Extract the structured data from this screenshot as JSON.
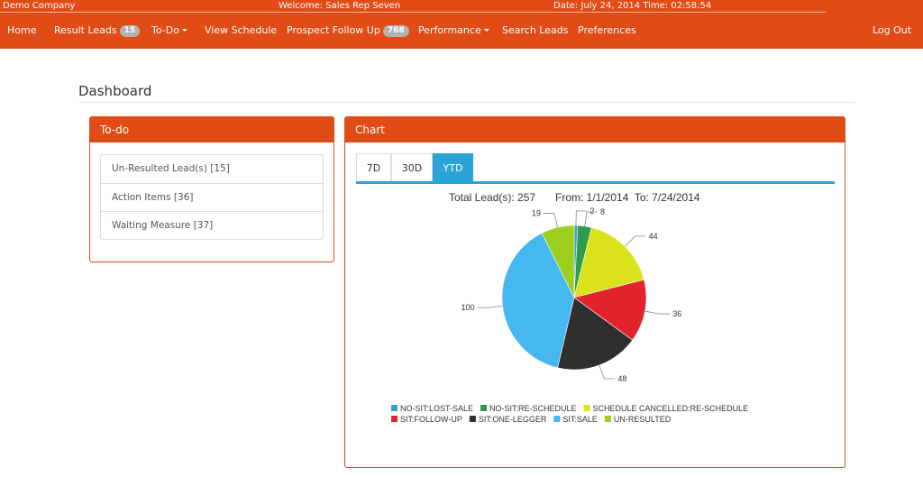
{
  "infobar": {
    "company": "Demo Company",
    "welcome": "Welcome: Sales Rep Seven",
    "datetime": "Date: July 24, 2014 Time: 02:58:54"
  },
  "nav": {
    "home": "Home",
    "result_leads": "Result Leads",
    "result_leads_count": "15",
    "todo": "To-Do",
    "view_schedule": "View Schedule",
    "prospect_follow_up": "Prospect Follow Up",
    "prospect_follow_up_count": "768",
    "performance": "Performance",
    "search_leads": "Search Leads",
    "preferences": "Preferences",
    "logout": "Log Out"
  },
  "page": {
    "title": "Dashboard"
  },
  "todo_panel": {
    "title": "To-do",
    "items": [
      {
        "label": "Un-Resulted Lead(s) [15]"
      },
      {
        "label": "Action Items [36]"
      },
      {
        "label": "Waiting Measure [37]"
      }
    ]
  },
  "chart_panel": {
    "title": "Chart",
    "tabs": [
      {
        "label": "7D",
        "active": false
      },
      {
        "label": "30D",
        "active": false
      },
      {
        "label": "YTD",
        "active": true
      }
    ],
    "summary": {
      "total": "Total Lead(s): 257",
      "range": "From: 1/1/2014  To: 7/24/2014"
    }
  },
  "chart_data": {
    "type": "pie",
    "title": "",
    "slices": [
      {
        "name": "NO-SIT:LOST-SALE",
        "value": 2,
        "color": "#3d9ad1"
      },
      {
        "name": "NO-SIT:RE-SCHEDULE",
        "value": 8,
        "color": "#2e9c4a"
      },
      {
        "name": "SCHEDULE CANCELLED:RE-SCHEDULE",
        "value": 44,
        "color": "#d9e21a"
      },
      {
        "name": "SIT:FOLLOW-UP",
        "value": 36,
        "color": "#e2232c"
      },
      {
        "name": "SIT:ONE-LEGGER",
        "value": 48,
        "color": "#2f2f2f"
      },
      {
        "name": "SIT:SALE",
        "value": 100,
        "color": "#45b8f0"
      },
      {
        "name": "UN-RESULTED",
        "value": 19,
        "color": "#9ccf1e"
      }
    ],
    "legend_position": "bottom"
  }
}
